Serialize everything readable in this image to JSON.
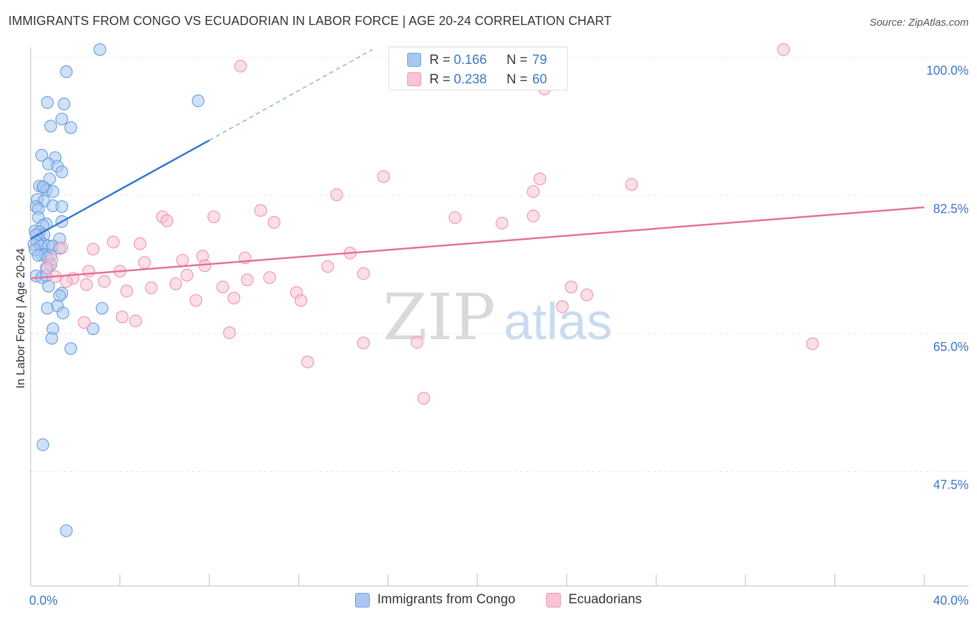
{
  "title": "IMMIGRANTS FROM CONGO VS ECUADORIAN IN LABOR FORCE | AGE 20-24 CORRELATION CHART",
  "source": "Source: ZipAtlas.com",
  "watermark": {
    "zip": "ZIP",
    "atlas": "atlas"
  },
  "legend": {
    "r_label": "R =",
    "n_label": "N =",
    "series": [
      {
        "r": "0.166",
        "n": "79"
      },
      {
        "r": "0.238",
        "n": "60"
      }
    ]
  },
  "colors": {
    "congo_fill": "#a9c8f0",
    "congo_stroke": "#6a9fe0",
    "congo_line": "#2f74d0",
    "ecu_fill": "#f8c5d4",
    "ecu_stroke": "#f095b2",
    "ecu_line": "#e36f98",
    "axis_label": "#3a76c8",
    "grid": "#e6e6e6"
  },
  "chart_data": {
    "type": "scatter",
    "title": "IMMIGRANTS FROM CONGO VS ECUADORIAN IN LABOR FORCE | AGE 20-24 CORRELATION CHART",
    "xlabel": "",
    "ylabel": "In Labor Force | Age 20-24",
    "xlim": [
      0,
      40
    ],
    "ylim": [
      33,
      102
    ],
    "x_tick_labels": [
      "0.0%",
      "40.0%"
    ],
    "y_ticks": [
      100.0,
      82.5,
      65.0,
      47.5
    ],
    "y_tick_labels": [
      "100.0%",
      "82.5%",
      "65.0%",
      "47.5%"
    ],
    "series": [
      {
        "name": "Immigrants from Congo",
        "r": 0.166,
        "n": 79,
        "trend": {
          "x0": 0.0,
          "y0": 77.0,
          "x1": 8.0,
          "y1": 89.5,
          "dash_to_x": 15.3,
          "dash_to_y": 101.0
        },
        "points": [
          [
            3.1,
            101.0
          ],
          [
            1.6,
            98.2
          ],
          [
            7.5,
            94.5
          ],
          [
            0.75,
            94.3
          ],
          [
            1.5,
            94.1
          ],
          [
            1.4,
            92.2
          ],
          [
            0.9,
            91.3
          ],
          [
            1.8,
            91.1
          ],
          [
            0.5,
            87.6
          ],
          [
            1.1,
            87.3
          ],
          [
            0.8,
            86.5
          ],
          [
            1.2,
            86.2
          ],
          [
            1.4,
            85.5
          ],
          [
            0.85,
            84.6
          ],
          [
            0.4,
            83.7
          ],
          [
            0.6,
            83.5
          ],
          [
            0.7,
            83.2
          ],
          [
            1.0,
            83.0
          ],
          [
            0.55,
            83.6
          ],
          [
            0.3,
            82.0
          ],
          [
            0.6,
            81.8
          ],
          [
            1.0,
            81.2
          ],
          [
            1.4,
            81.1
          ],
          [
            0.25,
            81.1
          ],
          [
            0.35,
            80.8
          ],
          [
            0.35,
            79.7
          ],
          [
            1.4,
            79.2
          ],
          [
            0.7,
            78.9
          ],
          [
            0.55,
            78.7
          ],
          [
            0.2,
            78.0
          ],
          [
            0.4,
            77.9
          ],
          [
            0.6,
            77.5
          ],
          [
            0.25,
            77.5
          ],
          [
            1.3,
            77.0
          ],
          [
            0.4,
            76.9
          ],
          [
            0.3,
            76.6
          ],
          [
            0.15,
            76.3
          ],
          [
            0.6,
            76.3
          ],
          [
            0.45,
            76.1
          ],
          [
            0.8,
            76.1
          ],
          [
            1.0,
            76.1
          ],
          [
            1.3,
            75.8
          ],
          [
            0.2,
            75.6
          ],
          [
            0.5,
            75.0
          ],
          [
            0.65,
            75.0
          ],
          [
            0.35,
            74.9
          ],
          [
            0.9,
            74.9
          ],
          [
            0.75,
            74.6
          ],
          [
            0.9,
            73.7
          ],
          [
            0.7,
            73.3
          ],
          [
            0.25,
            72.3
          ],
          [
            0.5,
            72.1
          ],
          [
            0.7,
            72.3
          ],
          [
            0.8,
            71.0
          ],
          [
            1.4,
            70.1
          ],
          [
            1.3,
            69.8
          ],
          [
            1.2,
            68.5
          ],
          [
            0.75,
            68.2
          ],
          [
            3.2,
            68.2
          ],
          [
            1.45,
            67.6
          ],
          [
            1.0,
            65.6
          ],
          [
            2.8,
            65.6
          ],
          [
            0.95,
            64.4
          ],
          [
            1.8,
            63.1
          ],
          [
            0.55,
            50.9
          ],
          [
            1.6,
            40.0
          ]
        ]
      },
      {
        "name": "Ecuadorians",
        "r": 0.238,
        "n": 60,
        "trend": {
          "x0": 0.0,
          "y0": 72.0,
          "x1": 40.0,
          "y1": 81.0
        },
        "points": [
          [
            33.7,
            101.0
          ],
          [
            9.4,
            98.9
          ],
          [
            23.0,
            96.0
          ],
          [
            15.8,
            84.9
          ],
          [
            22.8,
            84.6
          ],
          [
            26.9,
            83.9
          ],
          [
            22.5,
            83.0
          ],
          [
            13.7,
            82.6
          ],
          [
            10.3,
            80.6
          ],
          [
            5.9,
            79.8
          ],
          [
            8.2,
            79.8
          ],
          [
            22.5,
            79.9
          ],
          [
            19.0,
            79.7
          ],
          [
            6.1,
            79.3
          ],
          [
            10.9,
            79.1
          ],
          [
            21.1,
            79.0
          ],
          [
            3.7,
            76.6
          ],
          [
            4.9,
            76.4
          ],
          [
            1.4,
            75.9
          ],
          [
            2.8,
            75.7
          ],
          [
            14.3,
            75.2
          ],
          [
            7.7,
            74.8
          ],
          [
            9.6,
            74.6
          ],
          [
            0.95,
            74.4
          ],
          [
            6.8,
            74.3
          ],
          [
            5.1,
            74.0
          ],
          [
            7.8,
            73.6
          ],
          [
            13.3,
            73.5
          ],
          [
            0.75,
            73.3
          ],
          [
            4.0,
            72.9
          ],
          [
            2.6,
            72.9
          ],
          [
            14.9,
            72.6
          ],
          [
            7.0,
            72.4
          ],
          [
            1.1,
            72.2
          ],
          [
            1.9,
            72.0
          ],
          [
            10.7,
            72.1
          ],
          [
            9.7,
            71.8
          ],
          [
            1.6,
            71.6
          ],
          [
            3.3,
            71.6
          ],
          [
            2.5,
            71.2
          ],
          [
            6.5,
            71.3
          ],
          [
            8.6,
            70.9
          ],
          [
            5.4,
            70.8
          ],
          [
            4.3,
            70.4
          ],
          [
            24.2,
            70.9
          ],
          [
            11.9,
            70.2
          ],
          [
            24.9,
            69.9
          ],
          [
            9.1,
            69.5
          ],
          [
            7.4,
            69.2
          ],
          [
            12.1,
            69.2
          ],
          [
            23.8,
            68.4
          ],
          [
            4.1,
            67.1
          ],
          [
            4.7,
            66.6
          ],
          [
            2.4,
            66.4
          ],
          [
            8.9,
            65.1
          ],
          [
            14.9,
            63.8
          ],
          [
            17.3,
            63.9
          ],
          [
            35.0,
            63.7
          ],
          [
            12.4,
            61.4
          ],
          [
            17.6,
            56.8
          ]
        ]
      }
    ]
  }
}
